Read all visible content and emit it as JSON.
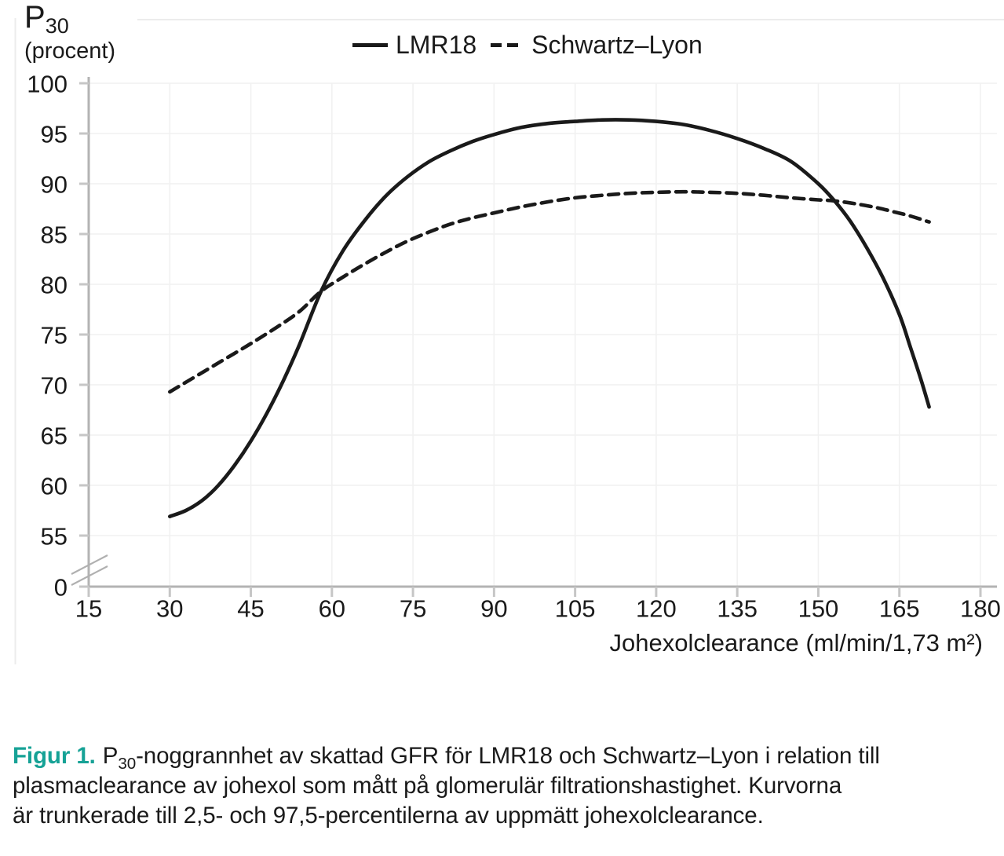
{
  "figure": {
    "y_axis_title": {
      "prefix": "P",
      "sub": "30",
      "unit": "(procent)"
    },
    "caption": {
      "label": "Figur 1.",
      "line1_p": "P",
      "line1_sub": "30",
      "line1_rest": "-noggrannhet av skattad GFR för LMR18 och Schwartz–Lyon i relation till",
      "line2": "plasmaclearance av johexol som mått på glomerulär filtrationshastighet. Kurvorna",
      "line3": "är trunkerade till 2,5- och 97,5-percentilerna av uppmätt johexolclearance."
    },
    "colors": {
      "accent_teal": "#16a296",
      "curve_black": "#1a1a1a",
      "axis_gray": "#b3b3b3",
      "tick_gray": "#c6c6c6",
      "grid_gray": "#f1f1f1",
      "frame_gray": "#ececec"
    }
  },
  "chart_data": {
    "type": "line",
    "title": "",
    "xlabel": "Johexolclearance (ml/min/1,73 m²)",
    "ylabel": "P30 (procent)",
    "xlim": [
      15,
      180
    ],
    "ylim": [
      55,
      100
    ],
    "y_axis_break_between": [
      0,
      55
    ],
    "grid": true,
    "x_ticks": [
      15,
      30,
      45,
      60,
      75,
      90,
      105,
      120,
      135,
      150,
      165,
      180
    ],
    "y_ticks": [
      100,
      95,
      90,
      85,
      80,
      75,
      70,
      65,
      60,
      55,
      0
    ],
    "legend": {
      "position": "top-center",
      "entries": [
        {
          "label": "LMR18",
          "style": "solid"
        },
        {
          "label": "Schwartz–Lyon",
          "style": "dashed"
        }
      ]
    },
    "series": [
      {
        "name": "LMR18",
        "line_style": "solid",
        "color": "#1a1a1a",
        "x": [
          30,
          33,
          36,
          39,
          42,
          45,
          48,
          51,
          54,
          58,
          62,
          66,
          70,
          74,
          78,
          82,
          86,
          90,
          95,
          100,
          105,
          110,
          115,
          120,
          125,
          130,
          135,
          140,
          145,
          150,
          153,
          156,
          159,
          162,
          165,
          167,
          169,
          170.5
        ],
        "y": [
          56.9,
          57.5,
          58.5,
          60,
          62,
          64.4,
          67.2,
          70.4,
          74,
          79.3,
          83.3,
          86.3,
          88.8,
          90.7,
          92.2,
          93.3,
          94.2,
          94.9,
          95.6,
          96,
          96.2,
          96.35,
          96.35,
          96.2,
          95.9,
          95.3,
          94.5,
          93.5,
          92.2,
          90,
          88.3,
          86.2,
          83.6,
          80.6,
          77,
          73.8,
          70.5,
          67.8
        ]
      },
      {
        "name": "Schwartz–Lyon",
        "line_style": "dashed",
        "color": "#1a1a1a",
        "x": [
          30,
          35,
          40,
          45,
          50,
          54,
          58,
          62,
          66,
          70,
          74,
          78,
          82,
          86,
          90,
          95,
          100,
          105,
          110,
          115,
          120,
          125,
          130,
          135,
          140,
          145,
          150,
          153,
          157,
          161,
          164,
          167,
          170.5
        ],
        "y": [
          69.3,
          70.9,
          72.5,
          74.1,
          75.8,
          77.3,
          79.3,
          80.7,
          82,
          83.2,
          84.3,
          85.2,
          86,
          86.6,
          87.1,
          87.7,
          88.2,
          88.6,
          88.85,
          89.05,
          89.15,
          89.2,
          89.15,
          89.05,
          88.85,
          88.6,
          88.4,
          88.3,
          88,
          87.6,
          87.2,
          86.8,
          86.2
        ]
      }
    ]
  }
}
